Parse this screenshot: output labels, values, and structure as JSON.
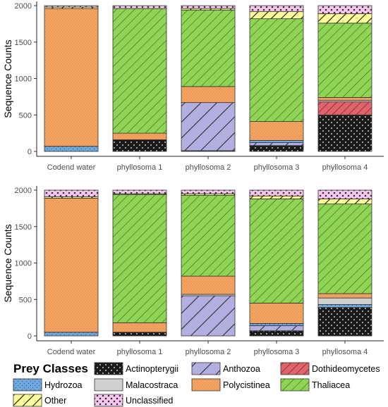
{
  "colors": {
    "Actinopterygii": "#1a1a1a",
    "Anthozoa": "#b3aee0",
    "Dothideomycetes": "#e0626a",
    "Hydrozoa": "#6fa8dc",
    "Malacostraca": "#d0d0d0",
    "Polycistinea": "#f4a460",
    "Thaliacea": "#8fd454",
    "Other": "#ffff99",
    "Unclassified": "#f7c6ee"
  },
  "chart_data": [
    {
      "type": "bar",
      "stacked": true,
      "categories": [
        "Codend water",
        "phyllosoma 1",
        "phyllosoma 2",
        "phyllosoma 3",
        "phyllosoma 4"
      ],
      "ylabel": "Sequence Counts",
      "ylim": [
        0,
        2000
      ],
      "yticks": [
        0,
        500,
        1000,
        1500,
        2000
      ],
      "series": [
        {
          "name": "Actinopterygii",
          "values": [
            0,
            160,
            10,
            80,
            500
          ]
        },
        {
          "name": "Anthozoa",
          "values": [
            0,
            0,
            660,
            40,
            0
          ]
        },
        {
          "name": "Dothideomycetes",
          "values": [
            0,
            0,
            0,
            0,
            180
          ]
        },
        {
          "name": "Hydrozoa",
          "values": [
            70,
            0,
            0,
            30,
            0
          ]
        },
        {
          "name": "Malacostraca",
          "values": [
            0,
            0,
            0,
            0,
            20
          ]
        },
        {
          "name": "Polycistinea",
          "values": [
            1890,
            90,
            220,
            260,
            40
          ]
        },
        {
          "name": "Thaliacea",
          "values": [
            0,
            1710,
            1050,
            1410,
            1020
          ]
        },
        {
          "name": "Other",
          "values": [
            20,
            0,
            20,
            100,
            130
          ]
        },
        {
          "name": "Unclassified",
          "values": [
            20,
            40,
            40,
            80,
            110
          ]
        }
      ]
    },
    {
      "type": "bar",
      "stacked": true,
      "categories": [
        "Codend water",
        "phyllosoma 1",
        "phyllosoma 2",
        "phyllosoma 3",
        "phyllosoma 4"
      ],
      "ylabel": "Sequence Counts",
      "ylim": [
        0,
        2000
      ],
      "yticks": [
        0,
        500,
        1000,
        1500,
        2000
      ],
      "series": [
        {
          "name": "Actinopterygii",
          "values": [
            0,
            50,
            0,
            70,
            390
          ]
        },
        {
          "name": "Anthozoa",
          "values": [
            0,
            0,
            550,
            70,
            0
          ]
        },
        {
          "name": "Dothideomycetes",
          "values": [
            0,
            0,
            0,
            0,
            0
          ]
        },
        {
          "name": "Hydrozoa",
          "values": [
            50,
            0,
            0,
            30,
            40
          ]
        },
        {
          "name": "Malacostraca",
          "values": [
            0,
            0,
            20,
            0,
            90
          ]
        },
        {
          "name": "Polycistinea",
          "values": [
            1840,
            130,
            250,
            280,
            60
          ]
        },
        {
          "name": "Thaliacea",
          "values": [
            0,
            1760,
            1110,
            1430,
            1230
          ]
        },
        {
          "name": "Other",
          "values": [
            20,
            10,
            20,
            40,
            70
          ]
        },
        {
          "name": "Unclassified",
          "values": [
            90,
            50,
            50,
            80,
            120
          ]
        }
      ]
    }
  ],
  "legend": {
    "title": "Prey Classes",
    "items": [
      "Actinopterygii",
      "Anthozoa",
      "Dothideomycetes",
      "Hydrozoa",
      "Malacostraca",
      "Polycistinea",
      "Thaliacea",
      "Other",
      "Unclassified"
    ]
  }
}
